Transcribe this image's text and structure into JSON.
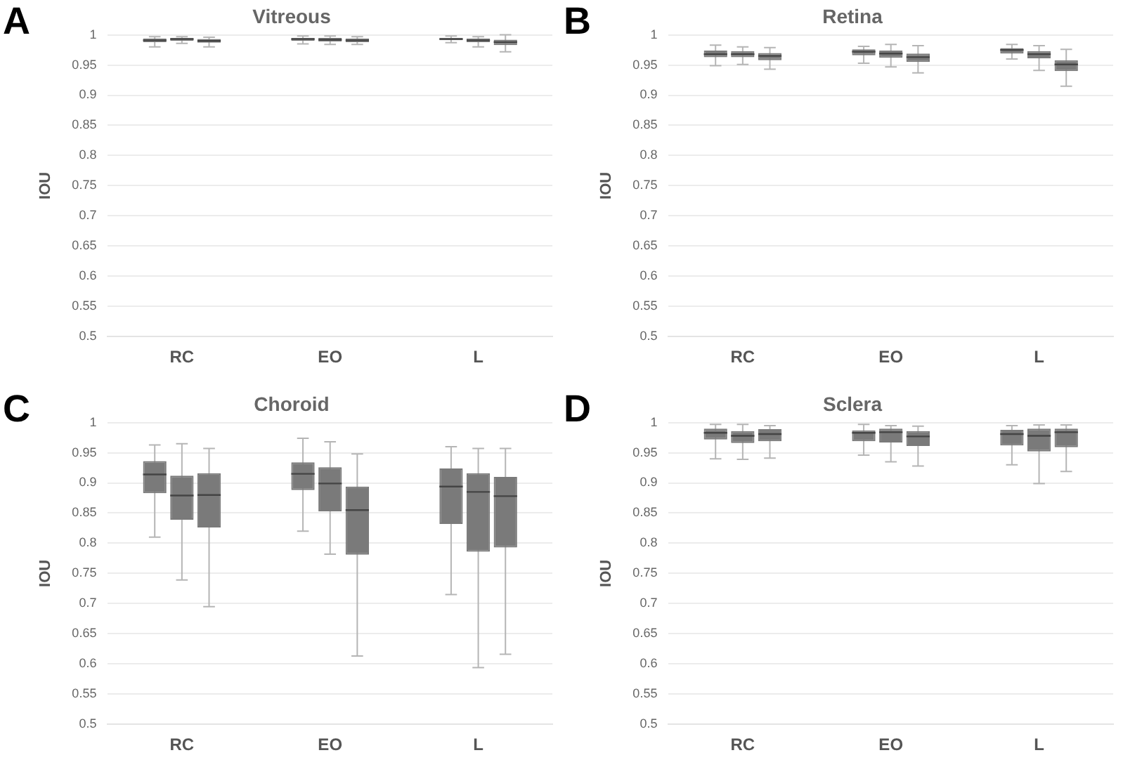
{
  "chart_data": [
    {
      "type": "box",
      "title": "Vitreous",
      "ylabel": "IOU",
      "annotations": [
        "A"
      ],
      "categories": [
        "RC",
        "EO",
        "L"
      ],
      "ylim": [
        0.5,
        1
      ],
      "yticks": [
        0.5,
        0.55,
        0.6,
        0.65,
        0.7,
        0.75,
        0.8,
        0.85,
        0.9,
        0.95,
        1
      ],
      "grid": "y",
      "legend": false,
      "series": [
        {
          "color": "#7a7a7a",
          "boxes": [
            {
              "low": 0.98,
              "q1": 0.988,
              "median": 0.991,
              "q3": 0.994,
              "high": 0.997
            },
            {
              "low": 0.985,
              "q1": 0.99,
              "median": 0.993,
              "q3": 0.995,
              "high": 0.998
            },
            {
              "low": 0.987,
              "q1": 0.991,
              "median": 0.993,
              "q3": 0.995,
              "high": 0.998
            }
          ]
        },
        {
          "color": "#7a7a7a",
          "boxes": [
            {
              "low": 0.986,
              "q1": 0.99,
              "median": 0.993,
              "q3": 0.995,
              "high": 0.997
            },
            {
              "low": 0.984,
              "q1": 0.989,
              "median": 0.992,
              "q3": 0.995,
              "high": 0.998
            },
            {
              "low": 0.98,
              "q1": 0.988,
              "median": 0.991,
              "q3": 0.994,
              "high": 0.997
            }
          ]
        },
        {
          "color": "#7a7a7a",
          "boxes": [
            {
              "low": 0.98,
              "q1": 0.987,
              "median": 0.99,
              "q3": 0.993,
              "high": 0.996
            },
            {
              "low": 0.984,
              "q1": 0.988,
              "median": 0.991,
              "q3": 0.994,
              "high": 0.997
            },
            {
              "low": 0.972,
              "q1": 0.983,
              "median": 0.988,
              "q3": 0.992,
              "high": 1.0
            }
          ]
        }
      ]
    },
    {
      "type": "box",
      "title": "Retina",
      "ylabel": "IOU",
      "annotations": [
        "B"
      ],
      "categories": [
        "RC",
        "EO",
        "L"
      ],
      "ylim": [
        0.5,
        1
      ],
      "yticks": [
        0.5,
        0.55,
        0.6,
        0.65,
        0.7,
        0.75,
        0.8,
        0.85,
        0.9,
        0.95,
        1
      ],
      "grid": "y",
      "legend": false,
      "series": [
        {
          "color": "#7a7a7a",
          "boxes": [
            {
              "low": 0.949,
              "q1": 0.963,
              "median": 0.968,
              "q3": 0.974,
              "high": 0.983
            },
            {
              "low": 0.953,
              "q1": 0.966,
              "median": 0.972,
              "q3": 0.976,
              "high": 0.981
            },
            {
              "low": 0.96,
              "q1": 0.969,
              "median": 0.975,
              "q3": 0.978,
              "high": 0.984
            }
          ]
        },
        {
          "color": "#7a7a7a",
          "boxes": [
            {
              "low": 0.951,
              "q1": 0.963,
              "median": 0.968,
              "q3": 0.973,
              "high": 0.98
            },
            {
              "low": 0.947,
              "q1": 0.962,
              "median": 0.969,
              "q3": 0.974,
              "high": 0.984
            },
            {
              "low": 0.941,
              "q1": 0.961,
              "median": 0.968,
              "q3": 0.973,
              "high": 0.982
            }
          ]
        },
        {
          "color": "#7a7a7a",
          "boxes": [
            {
              "low": 0.943,
              "q1": 0.958,
              "median": 0.965,
              "q3": 0.97,
              "high": 0.979
            },
            {
              "low": 0.937,
              "q1": 0.955,
              "median": 0.963,
              "q3": 0.969,
              "high": 0.982
            },
            {
              "low": 0.915,
              "q1": 0.94,
              "median": 0.951,
              "q3": 0.958,
              "high": 0.976
            }
          ]
        }
      ]
    },
    {
      "type": "box",
      "title": "Choroid",
      "ylabel": "IOU",
      "annotations": [
        "C"
      ],
      "categories": [
        "RC",
        "EO",
        "L"
      ],
      "ylim": [
        0.5,
        1
      ],
      "yticks": [
        0.5,
        0.55,
        0.6,
        0.65,
        0.7,
        0.75,
        0.8,
        0.85,
        0.9,
        0.95,
        1
      ],
      "grid": "y",
      "legend": false,
      "series": [
        {
          "color": "#7a7a7a",
          "boxes": [
            {
              "low": 0.81,
              "q1": 0.883,
              "median": 0.914,
              "q3": 0.936,
              "high": 0.963
            },
            {
              "low": 0.82,
              "q1": 0.888,
              "median": 0.915,
              "q3": 0.934,
              "high": 0.974
            },
            {
              "low": 0.715,
              "q1": 0.832,
              "median": 0.894,
              "q3": 0.924,
              "high": 0.96
            }
          ]
        },
        {
          "color": "#7a7a7a",
          "boxes": [
            {
              "low": 0.739,
              "q1": 0.839,
              "median": 0.879,
              "q3": 0.912,
              "high": 0.965
            },
            {
              "low": 0.782,
              "q1": 0.853,
              "median": 0.899,
              "q3": 0.926,
              "high": 0.968
            },
            {
              "low": 0.594,
              "q1": 0.786,
              "median": 0.885,
              "q3": 0.916,
              "high": 0.957
            }
          ]
        },
        {
          "color": "#7a7a7a",
          "boxes": [
            {
              "low": 0.695,
              "q1": 0.826,
              "median": 0.88,
              "q3": 0.916,
              "high": 0.957
            },
            {
              "low": 0.613,
              "q1": 0.781,
              "median": 0.855,
              "q3": 0.894,
              "high": 0.948
            },
            {
              "low": 0.616,
              "q1": 0.793,
              "median": 0.878,
              "q3": 0.91,
              "high": 0.957
            }
          ]
        }
      ]
    },
    {
      "type": "box",
      "title": "Sclera",
      "ylabel": "IOU",
      "annotations": [
        "D"
      ],
      "categories": [
        "RC",
        "EO",
        "L"
      ],
      "ylim": [
        0.5,
        1
      ],
      "yticks": [
        0.5,
        0.55,
        0.6,
        0.65,
        0.7,
        0.75,
        0.8,
        0.85,
        0.9,
        0.95,
        1
      ],
      "grid": "y",
      "legend": false,
      "series": [
        {
          "color": "#7a7a7a",
          "boxes": [
            {
              "low": 0.94,
              "q1": 0.972,
              "median": 0.983,
              "q3": 0.99,
              "high": 0.997
            },
            {
              "low": 0.946,
              "q1": 0.969,
              "median": 0.983,
              "q3": 0.987,
              "high": 0.997
            },
            {
              "low": 0.93,
              "q1": 0.962,
              "median": 0.981,
              "q3": 0.988,
              "high": 0.995
            }
          ]
        },
        {
          "color": "#7a7a7a",
          "boxes": [
            {
              "low": 0.939,
              "q1": 0.966,
              "median": 0.978,
              "q3": 0.986,
              "high": 0.997
            },
            {
              "low": 0.935,
              "q1": 0.967,
              "median": 0.984,
              "q3": 0.99,
              "high": 0.995
            },
            {
              "low": 0.899,
              "q1": 0.952,
              "median": 0.978,
              "q3": 0.99,
              "high": 0.996
            }
          ]
        },
        {
          "color": "#7a7a7a",
          "boxes": [
            {
              "low": 0.941,
              "q1": 0.969,
              "median": 0.981,
              "q3": 0.989,
              "high": 0.995
            },
            {
              "low": 0.928,
              "q1": 0.961,
              "median": 0.977,
              "q3": 0.986,
              "high": 0.994
            },
            {
              "low": 0.919,
              "q1": 0.959,
              "median": 0.984,
              "q3": 0.99,
              "high": 0.996
            }
          ]
        }
      ]
    }
  ]
}
